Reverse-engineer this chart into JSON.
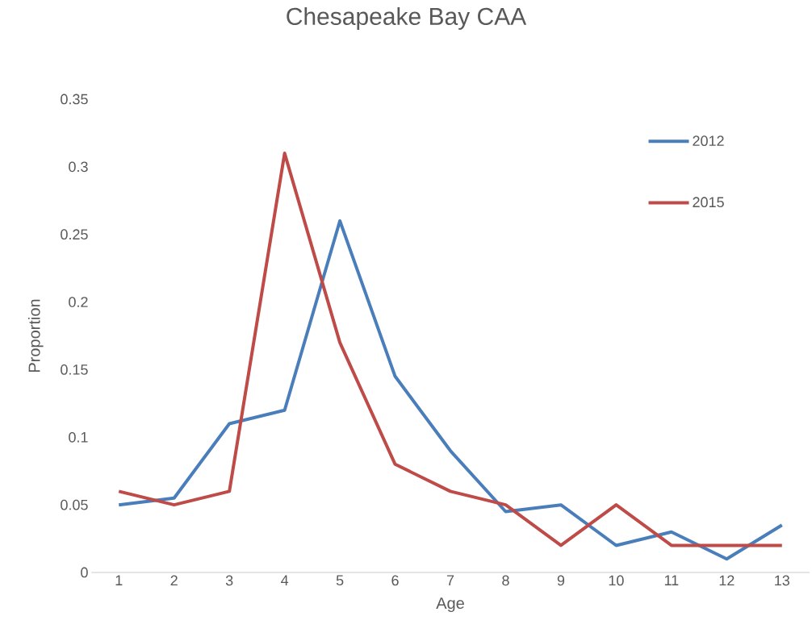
{
  "chart_data": {
    "type": "line",
    "title": "Chesapeake Bay CAA",
    "xlabel": "Age",
    "ylabel": "Proportion",
    "categories": [
      "1",
      "2",
      "3",
      "4",
      "5",
      "6",
      "7",
      "8",
      "9",
      "10",
      "11",
      "12",
      "13"
    ],
    "series": [
      {
        "name": "2012",
        "color": "#4a7ebb",
        "values": [
          0.05,
          0.055,
          0.11,
          0.12,
          0.26,
          0.145,
          0.09,
          0.045,
          0.05,
          0.02,
          0.03,
          0.01,
          0.035
        ]
      },
      {
        "name": "2015",
        "color": "#be4b48",
        "values": [
          0.06,
          0.05,
          0.06,
          0.31,
          0.17,
          0.08,
          0.06,
          0.05,
          0.02,
          0.05,
          0.02,
          0.02,
          0.02
        ]
      }
    ],
    "ylim": [
      0,
      0.35
    ],
    "yticks": [
      0,
      0.05,
      0.1,
      0.15,
      0.2,
      0.25,
      0.3,
      0.35
    ],
    "legend": "top right"
  }
}
